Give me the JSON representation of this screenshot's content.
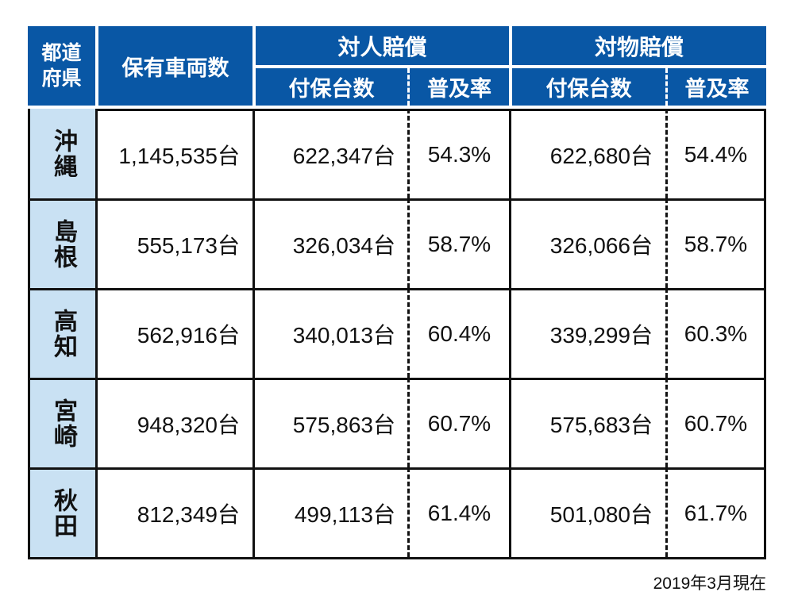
{
  "chart_data": {
    "type": "table",
    "header": {
      "prefecture": "都道府県",
      "vehicles": "保有車両数",
      "taijin_group": "対人賠償",
      "taibutsu_group": "対物賠償",
      "insured": "付保台数",
      "rate": "普及率"
    },
    "rows": [
      {
        "prefecture": "沖縄",
        "vehicles": "1,145,535台",
        "taijin_insured": "622,347台",
        "taijin_rate": "54.3%",
        "taibutsu_insured": "622,680台",
        "taibutsu_rate": "54.4%"
      },
      {
        "prefecture": "島根",
        "vehicles": "555,173台",
        "taijin_insured": "326,034台",
        "taijin_rate": "58.7%",
        "taibutsu_insured": "326,066台",
        "taibutsu_rate": "58.7%"
      },
      {
        "prefecture": "高知",
        "vehicles": "562,916台",
        "taijin_insured": "340,013台",
        "taijin_rate": "60.4%",
        "taibutsu_insured": "339,299台",
        "taibutsu_rate": "60.3%"
      },
      {
        "prefecture": "宮崎",
        "vehicles": "948,320台",
        "taijin_insured": "575,863台",
        "taijin_rate": "60.7%",
        "taibutsu_insured": "575,683台",
        "taibutsu_rate": "60.7%"
      },
      {
        "prefecture": "秋田",
        "vehicles": "812,349台",
        "taijin_insured": "499,113台",
        "taijin_rate": "61.4%",
        "taibutsu_insured": "501,080台",
        "taibutsu_rate": "61.7%"
      }
    ],
    "footnote": "2019年3月現在"
  },
  "colors": {
    "header_blue": "#0957a5",
    "prefecture_light_blue": "#c9e1f3",
    "border_black": "#111111",
    "header_text": "#ffffff"
  }
}
